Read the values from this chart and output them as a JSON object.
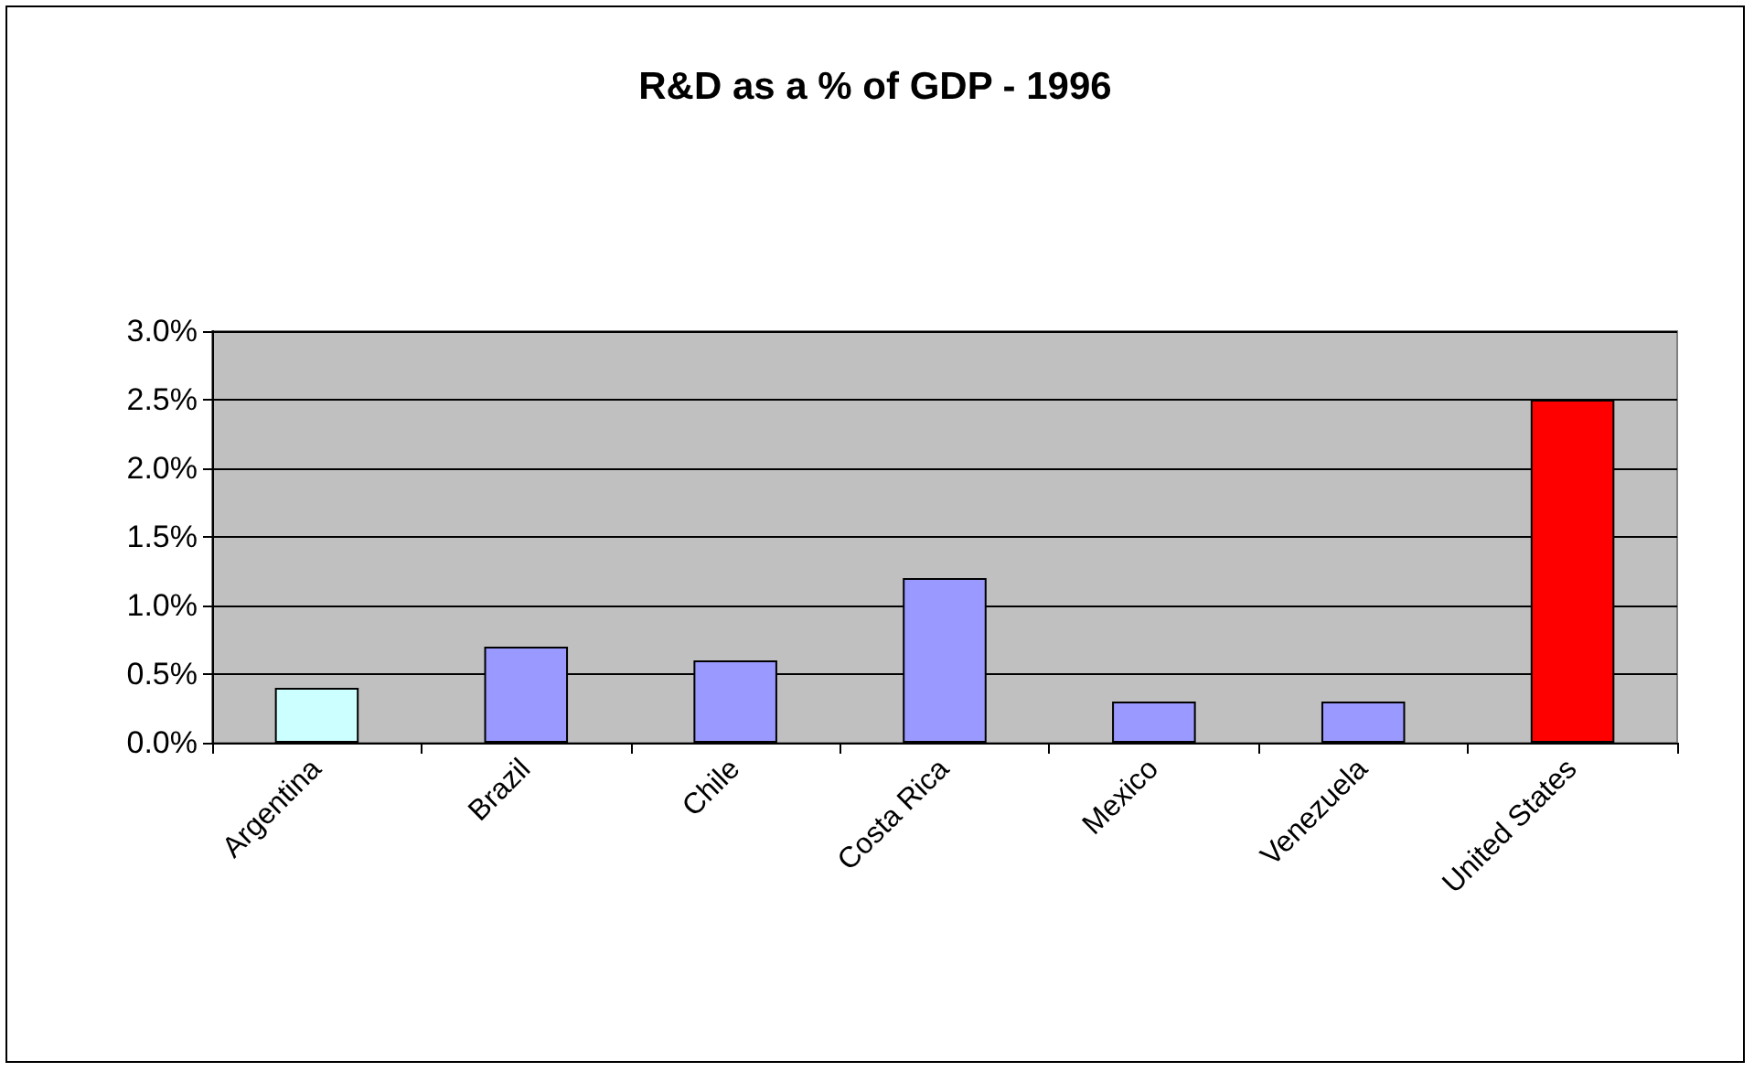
{
  "chart_data": {
    "type": "bar",
    "title": "R&D as a % of GDP - 1996",
    "categories": [
      "Argentina",
      "Brazil",
      "Chile",
      "Costa Rica",
      "Mexico",
      "Venezuela",
      "United States"
    ],
    "values": [
      0.4,
      0.7,
      0.6,
      1.2,
      0.3,
      0.3,
      2.5
    ],
    "colors": [
      "#ccffff",
      "#9999ff",
      "#9999ff",
      "#9999ff",
      "#9999ff",
      "#9999ff",
      "#ff0000"
    ],
    "ylim": [
      0,
      3
    ],
    "yticks": [
      {
        "value": 0,
        "label": "0.0%"
      },
      {
        "value": 0.5,
        "label": "0.5%"
      },
      {
        "value": 1,
        "label": "1.0%"
      },
      {
        "value": 1.5,
        "label": "1.5%"
      },
      {
        "value": 2,
        "label": "2.0%"
      },
      {
        "value": 2.5,
        "label": "2.5%"
      },
      {
        "value": 3,
        "label": "3.0%"
      }
    ],
    "grid": "y"
  }
}
